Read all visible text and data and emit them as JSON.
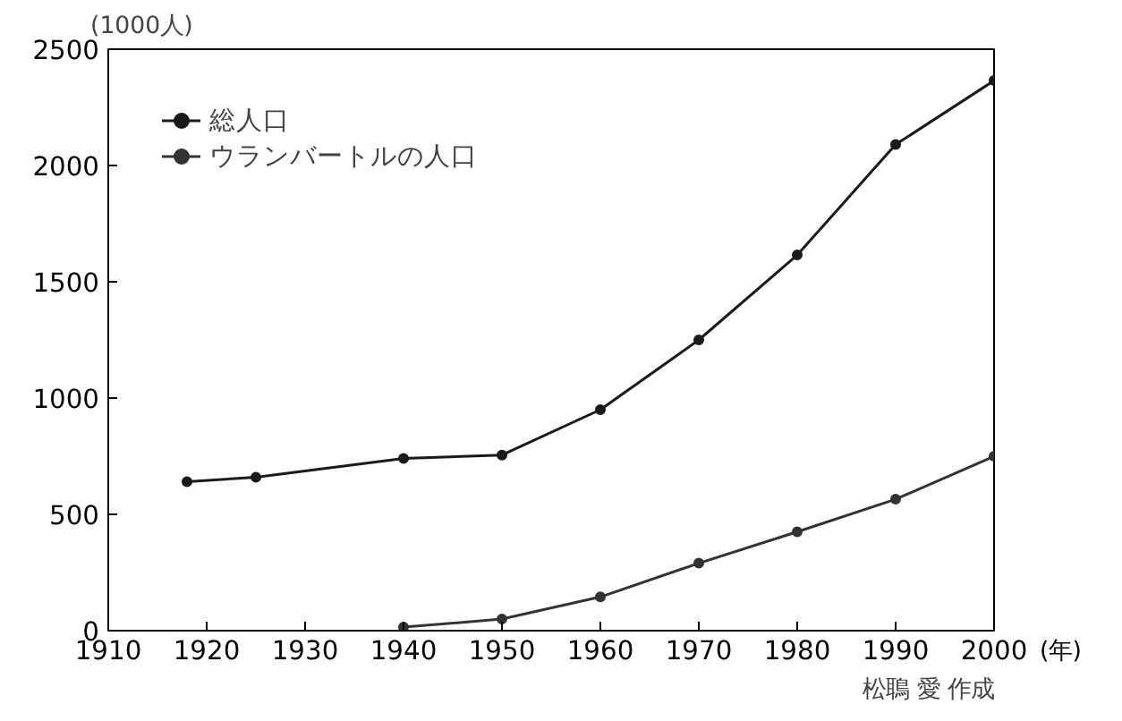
{
  "chart_data": {
    "type": "line",
    "xlabel": "(年)",
    "ylabel": "(1000人)",
    "annotations": [
      "松鵈 愛 作成"
    ],
    "xlim": [
      1910,
      2000
    ],
    "xticks": [
      1910,
      1920,
      1930,
      1940,
      1950,
      1960,
      1970,
      1980,
      1990,
      2000
    ],
    "ylim": [
      0,
      2500
    ],
    "yticks": [
      0,
      500,
      1000,
      1500,
      2000,
      2500
    ],
    "grid": false,
    "legend": "top left",
    "marker": "circle",
    "line_style": "solid",
    "series": [
      {
        "name": "総人口",
        "color": "#1a1a1a",
        "x": [
          1918,
          1925,
          1940,
          1950,
          1960,
          1970,
          1980,
          1990,
          2000
        ],
        "values": [
          640,
          660,
          740,
          755,
          950,
          1250,
          1615,
          2090,
          2365
        ]
      },
      {
        "name": "ウランバートルの人口",
        "color": "#333333",
        "x": [
          1940,
          1950,
          1960,
          1970,
          1980,
          1990,
          2000
        ],
        "values": [
          15,
          50,
          145,
          290,
          425,
          565,
          750
        ]
      }
    ]
  }
}
